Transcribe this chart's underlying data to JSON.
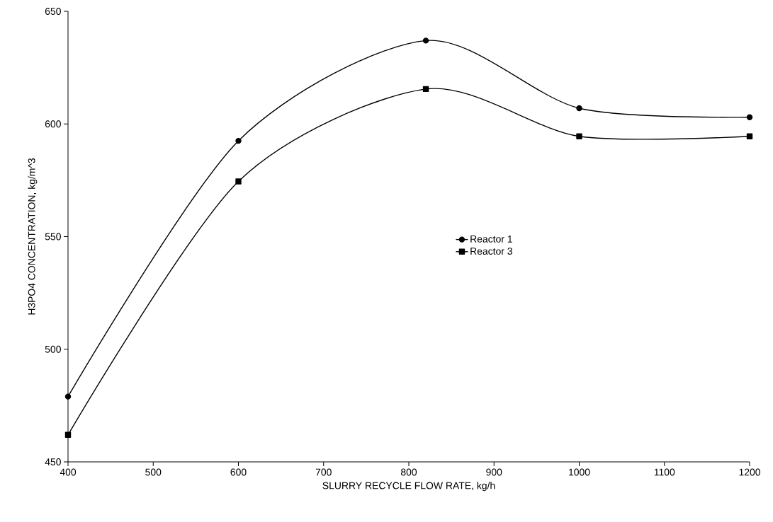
{
  "chart_data": {
    "type": "line",
    "xlabel": "SLURRY RECYCLE FLOW RATE, kg/h",
    "ylabel": "H3PO4 CONCENTRATION, kg/m^3",
    "x": [
      400,
      600,
      820,
      1000,
      1200
    ],
    "series": [
      {
        "name": "Reactor 1",
        "color": "#000000",
        "marker": "circle",
        "values": [
          479,
          592.5,
          637,
          607,
          603
        ]
      },
      {
        "name": "Reactor 3",
        "color": "#000000",
        "marker": "square",
        "values": [
          462,
          574.5,
          615.5,
          594.5,
          594.5
        ]
      }
    ],
    "xlim": [
      400,
      1200
    ],
    "xticks": [
      400,
      500,
      600,
      700,
      800,
      900,
      1000,
      1100,
      1200
    ],
    "ylim": [
      450,
      650
    ],
    "yticks": [
      450,
      500,
      550,
      600,
      650
    ],
    "grid": false,
    "legend": "center",
    "line_style": "solid"
  }
}
